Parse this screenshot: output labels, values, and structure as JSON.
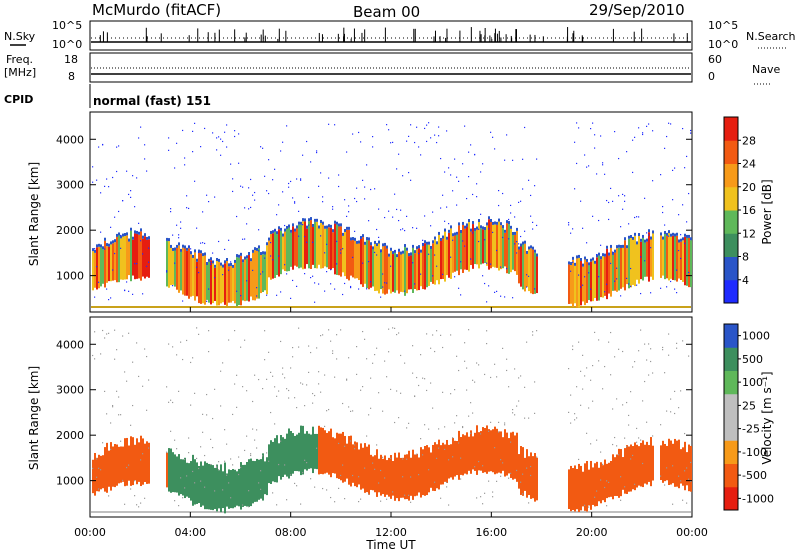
{
  "header": {
    "station": "McMurdo (fitACF)",
    "beam": "Beam 00",
    "date": "29/Sep/2010"
  },
  "status": {
    "nsky_label": "N.Sky",
    "nsearch_label": "N.Search",
    "noise_tick_top_left": "10^5",
    "noise_tick_bottom_left": "10^0",
    "noise_tick_top_right": "10^5",
    "noise_tick_bottom_right": "10^0",
    "freq_label_top": "Freq.",
    "freq_label_bottom": "[MHz]",
    "freq_tick_top": "18",
    "freq_tick_bottom": "8",
    "nave_label": "Nave",
    "nave_tick_top": "60",
    "nave_tick_bottom": "0",
    "cpid_label": "CPID",
    "cpid_value": "normal (fast) 151"
  },
  "colors": {
    "power_scale": [
      "#1f2bff",
      "#2a55c8",
      "#3d8f5e",
      "#5fb85a",
      "#f0c21e",
      "#f79a19",
      "#f25a12",
      "#e61e10"
    ],
    "velocity_scale": [
      "#e61e10",
      "#f25a12",
      "#f79a19",
      "#bfbfbf",
      "#bfbfbf",
      "#5fb85a",
      "#3d8f5e",
      "#2a55c8"
    ]
  },
  "chart_data": [
    {
      "type": "heatmap",
      "title": "Power",
      "ylabel": "Slant Range [km]",
      "ylim": [
        200,
        4600
      ],
      "yticks": [
        "1000",
        "2000",
        "3000",
        "4000"
      ],
      "colorbar_label": "Power [dB]",
      "colorbar_ticks": [
        "4",
        "8",
        "12",
        "16",
        "20",
        "24",
        "28"
      ],
      "colorbar_range": [
        0,
        30
      ]
    },
    {
      "type": "heatmap",
      "title": "Velocity",
      "ylabel": "Slant Range [km]",
      "ylim": [
        200,
        4600
      ],
      "yticks": [
        "1000",
        "2000",
        "3000",
        "4000"
      ],
      "colorbar_label": "Velocity [m s⁻¹]",
      "colorbar_ticks": [
        "1000",
        "500",
        "100",
        "25",
        "-25",
        "-100",
        "-500",
        "-1000"
      ]
    }
  ],
  "xaxis": {
    "label": "Time UT",
    "ticks": [
      "00:00",
      "04:00",
      "08:00",
      "12:00",
      "16:00",
      "20:00",
      "00:00"
    ]
  }
}
